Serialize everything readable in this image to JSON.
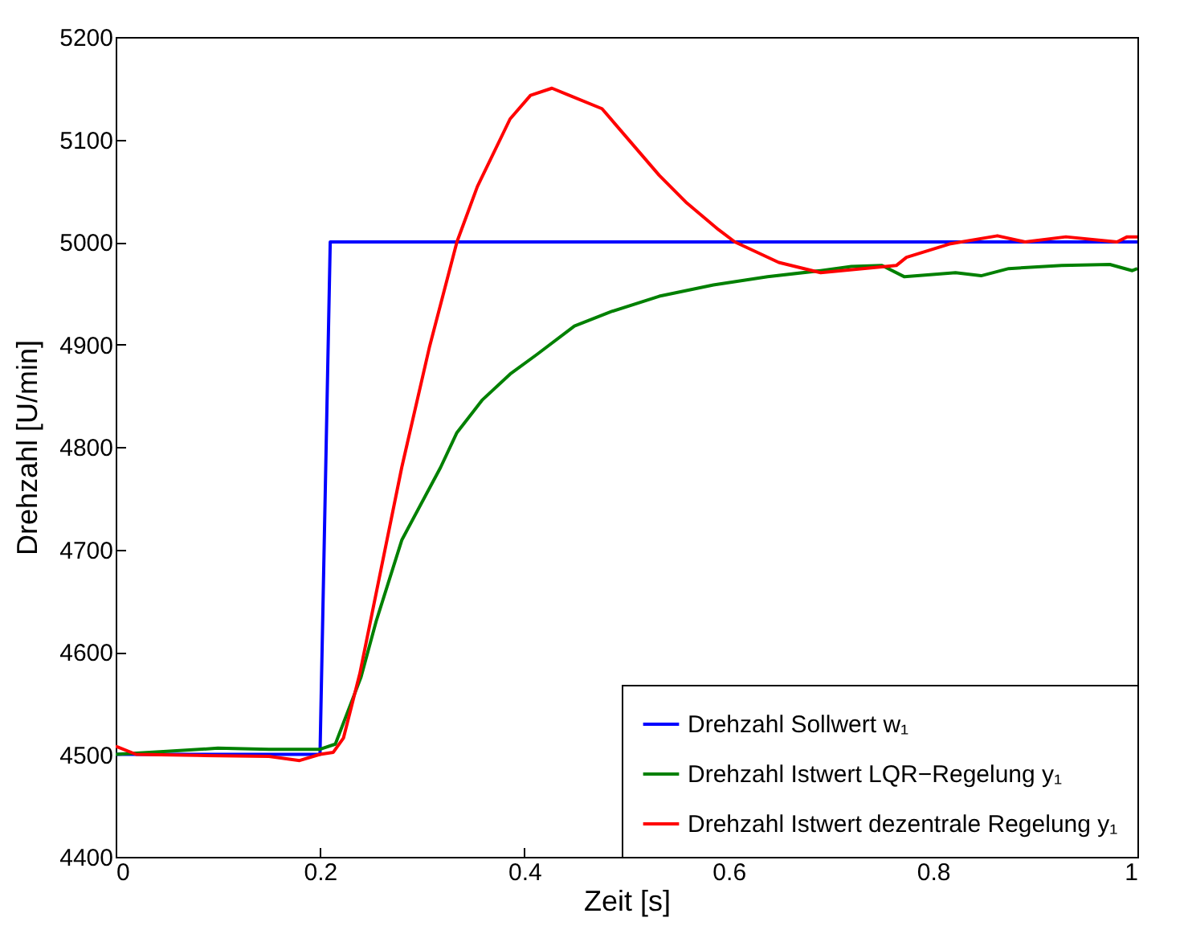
{
  "chart_data": {
    "type": "line",
    "xlabel": "Zeit [s]",
    "ylabel": "Drehzahl [U/min]",
    "xlim": [
      0,
      1
    ],
    "xticks": [
      0,
      0.2,
      0.4,
      0.6,
      0.8,
      1
    ],
    "ylim": [
      4400,
      5200
    ],
    "yticks": [
      4400,
      4500,
      4600,
      4700,
      4800,
      4900,
      5000,
      5100,
      5200
    ],
    "grid": false,
    "legend": "bottom right",
    "line_style": "solid",
    "series": [
      {
        "name": "Drehzahl Sollwert w₁",
        "color": "#0000ff",
        "x": [
          0,
          0.2,
          0.21,
          1
        ],
        "values": [
          4500,
          4500,
          5000,
          5000
        ]
      },
      {
        "name": "Drehzahl Istwert LQR−Regelung y₁",
        "color": "#008000",
        "x": [
          0,
          0.05,
          0.1,
          0.15,
          0.2,
          0.215,
          0.24,
          0.255,
          0.28,
          0.318,
          0.334,
          0.359,
          0.386,
          0.412,
          0.449,
          0.485,
          0.532,
          0.585,
          0.638,
          0.69,
          0.72,
          0.75,
          0.772,
          0.822,
          0.847,
          0.874,
          0.926,
          0.973,
          0.995,
          1
        ],
        "values": [
          4500,
          4503,
          4506,
          4505,
          4505,
          4510,
          4575,
          4630,
          4709,
          4780,
          4814,
          4846,
          4871,
          4890,
          4918,
          4932,
          4947,
          4958,
          4966,
          4972,
          4976,
          4977,
          4966,
          4970,
          4967,
          4974,
          4977,
          4978,
          4972,
          4974
        ]
      },
      {
        "name": "Drehzahl Istwert dezentrale Regelung y₁",
        "color": "#ff0000",
        "x": [
          0,
          0.02,
          0.08,
          0.15,
          0.18,
          0.2,
          0.213,
          0.223,
          0.239,
          0.26,
          0.28,
          0.307,
          0.334,
          0.354,
          0.386,
          0.406,
          0.427,
          0.444,
          0.476,
          0.532,
          0.559,
          0.59,
          0.606,
          0.649,
          0.69,
          0.764,
          0.774,
          0.816,
          0.863,
          0.89,
          0.93,
          0.98,
          0.99,
          1
        ],
        "values": [
          4508,
          4500,
          4499,
          4498,
          4494,
          4500,
          4502,
          4516,
          4579,
          4682,
          4780,
          4897,
          5000,
          5054,
          5120,
          5143,
          5150,
          5143,
          5130,
          5065,
          5038,
          5012,
          5000,
          4980,
          4970,
          4977,
          4985,
          4998,
          5006,
          5000,
          5005,
          5000,
          5005,
          5005
        ]
      }
    ]
  }
}
